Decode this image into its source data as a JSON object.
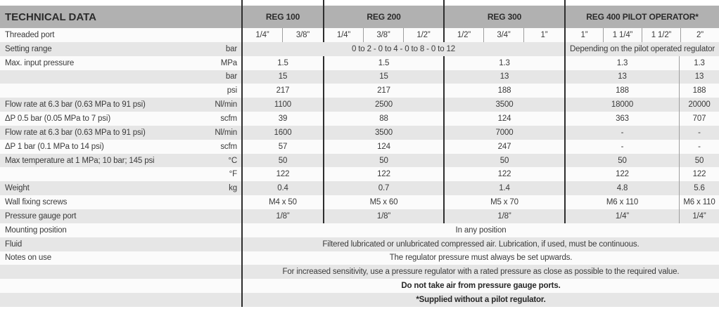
{
  "header": {
    "title": "TECHNICAL DATA",
    "columns": [
      "REG 100",
      "REG 200",
      "REG 300",
      "REG 400 PILOT OPERATOR*"
    ]
  },
  "ports": {
    "label": "Threaded port",
    "reg100": [
      "1/4”",
      "3/8”"
    ],
    "reg200": [
      "1/4”",
      "3/8”",
      "1/2”"
    ],
    "reg300": [
      "1/2”",
      "3/4”",
      "1”"
    ],
    "reg400": [
      "1”",
      "1 1/4”",
      "1 1/2”",
      "2”"
    ]
  },
  "setting_range": {
    "label": "Setting range",
    "unit": "bar",
    "reg100_300": "0 to 2 - 0 to 4 - 0 to 8 - 0 to 12",
    "reg400": "Depending on the pilot operated regulator"
  },
  "data_rows": [
    {
      "label": "Max. input pressure",
      "unit": "MPa",
      "values": [
        "1.5",
        "1.5",
        "1.3",
        "1.3",
        "1.3"
      ]
    },
    {
      "label": "",
      "unit": "bar",
      "values": [
        "15",
        "15",
        "13",
        "13",
        "13"
      ]
    },
    {
      "label": "",
      "unit": "psi",
      "values": [
        "217",
        "217",
        "188",
        "188",
        "188"
      ]
    },
    {
      "label": "Flow rate at 6.3 bar (0.63 MPa to 91 psi)",
      "unit": "Nl/min",
      "values": [
        "1100",
        "2500",
        "3500",
        "18000",
        "20000"
      ]
    },
    {
      "label": "ΔP 0.5 bar (0.05 MPa to 7 psi)",
      "unit": "scfm",
      "values": [
        "39",
        "88",
        "124",
        "363",
        "707"
      ]
    },
    {
      "label": "Flow rate at 6.3 bar (0.63 MPa to 91 psi)",
      "unit": "Nl/min",
      "values": [
        "1600",
        "3500",
        "7000",
        "-",
        "-"
      ]
    },
    {
      "label": "ΔP 1 bar (0.1 MPa to 14 psi)",
      "unit": "scfm",
      "values": [
        "57",
        "124",
        "247",
        "-",
        "-"
      ]
    },
    {
      "label": "Max temperature at 1 MPa; 10 bar; 145 psi",
      "unit": "°C",
      "values": [
        "50",
        "50",
        "50",
        "50",
        "50"
      ]
    },
    {
      "label": "",
      "unit": "°F",
      "values": [
        "122",
        "122",
        "122",
        "122",
        "122"
      ]
    },
    {
      "label": "Weight",
      "unit": "kg",
      "values": [
        "0.4",
        "0.7",
        "1.4",
        "4.8",
        "5.6"
      ]
    },
    {
      "label": "Wall fixing screws",
      "unit": "",
      "values": [
        "M4 x 50",
        "M5 x 60",
        "M5 x 70",
        "M6 x 110",
        "M6 x 110"
      ]
    },
    {
      "label": "Pressure gauge port",
      "unit": "",
      "values": [
        "1/8”",
        "1/8”",
        "1/8”",
        "1/4”",
        "1/4”"
      ]
    }
  ],
  "span_rows": [
    {
      "label": "Mounting position",
      "text": "In any position"
    },
    {
      "label": "Fluid",
      "text": "Filtered lubricated or unlubricated compressed air. Lubrication, if used, must be continuous."
    },
    {
      "label": "Notes on use",
      "text": "The regulator pressure must always be set  upwards."
    },
    {
      "label": "",
      "text": "For increased sensitivity, use a pressure regulator with a rated pressure as close as possible to the required value."
    },
    {
      "label": "",
      "text": "Do not take air from pressure gauge ports."
    },
    {
      "label": "",
      "text": "*Supplied without a pilot regulator."
    }
  ],
  "colors": {
    "header_band": "#b1b1b1",
    "stripe_gray": "#e6e6e6",
    "stripe_white": "#fbfbfb",
    "divider_black": "#2e2e2e",
    "divider_thin": "#9e9e9e",
    "text": "#3a3a3a"
  }
}
